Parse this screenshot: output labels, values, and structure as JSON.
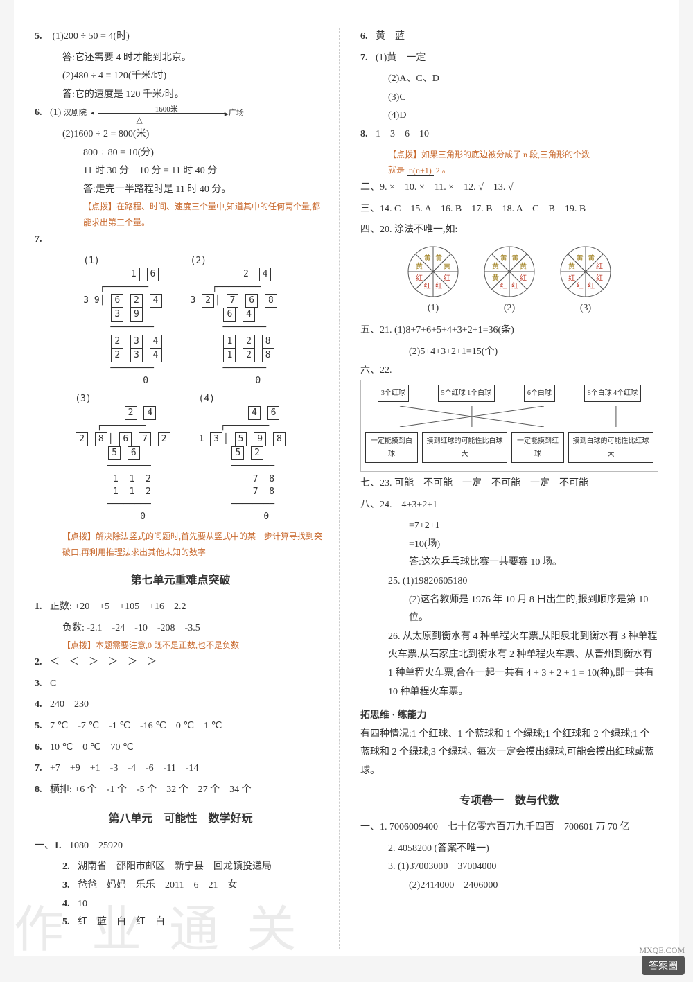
{
  "left": {
    "q5": {
      "n": "5.",
      "a": "(1)200 ÷ 50 = 4(时)",
      "a2": "答:它还需要 4 时才能到北京。",
      "b": "(2)480 ÷ 4 = 120(千米/时)",
      "b2": "答:它的速度是 120 千米/时。"
    },
    "q6": {
      "n": "6.",
      "a_label_l": "汉剧院",
      "a_len": "1600米",
      "a_label_r": "广场",
      "b": "(2)1600 ÷ 2 = 800(米)",
      "c": "800 ÷ 80 = 10(分)",
      "d": "11 时 30 分 + 10 分 = 11 时 40 分",
      "e": "答:走完一半路程时是 11 时 40 分。",
      "note": "【点拨】在路程、时间、速度三个量中,知道其中的任何两个量,都能求出第三个量。"
    },
    "q7": {
      "n": "7.",
      "sub": [
        "(1)",
        "(2)",
        "(3)",
        "(4)"
      ],
      "note": "【点拨】解决除法竖式的问题时,首先要从竖式中的某一步计算寻找到突破口,再利用推理法求出其他未知的数字"
    },
    "sec7_title": "第七单元重难点突破",
    "u7": {
      "q1a": "正数: +20　+5　+105　+16　2.2",
      "q1b": "负数: -2.1　-24　-10　-208　-3.5",
      "q1note": "【点拨】本题需要注意,0 既不是正数,也不是负数",
      "q2": "＜　＜　＞　＞　＞　＞",
      "q3": "C",
      "q4": "240　230",
      "q5": "7 ℃　-7 ℃　-1 ℃　-16 ℃　0 ℃　1 ℃",
      "q6": "10 ℃　0 ℃　70 ℃",
      "q7": "+7　+9　+1　-3　-4　-6　-11　-14",
      "q8": "横排: +6 个　-1 个　-5 个　32 个　27 个　34 个"
    },
    "sec8_title": "第八单元　可能性　数学好玩",
    "u8": {
      "q1": "1080　25920",
      "q2": "湖南省　邵阳市邮区　新宁县　回龙镇投递局",
      "q3": "爸爸　妈妈　乐乐　2011　6　21　女",
      "q4": "10",
      "q5": "红　蓝　白　红　白"
    }
  },
  "right": {
    "q6": "黄　蓝",
    "q7": {
      "a": "(1)黄　一定",
      "b": "(2)A、C、D",
      "c": "(3)C",
      "d": "(4)D"
    },
    "q8": {
      "a": "1　3　6　10",
      "note_pre": "【点拨】如果三角形的底边被分成了 n 段,三角形的个数",
      "note_frac_t": "n(n+1)",
      "note_frac_b": "2",
      "note_pre2": "就是",
      "note_suf": "。"
    },
    "sec2": "二、9. ×　10. ×　11. ×　12. √　13. √",
    "sec3": "三、14. C　15. A　16. B　17. B　18. A　C　B　19. B",
    "sec4_title": "四、20. 涂法不唯一,如:",
    "pies": {
      "labels": [
        "(1)",
        "(2)",
        "(3)"
      ],
      "colors": {
        "y": "#f5e6a8",
        "r": "#f2b0a8",
        "line": "#555"
      },
      "segs": [
        [
          "黄",
          "黄",
          "红",
          "红",
          "红",
          "红",
          "黄",
          "黄"
        ],
        [
          "黄",
          "黄",
          "红",
          "红",
          "红",
          "黄",
          "黄",
          "黄"
        ],
        [
          "黄",
          "红",
          "红",
          "红",
          "红",
          "红",
          "黄",
          "黄"
        ]
      ]
    },
    "sec5a": "五、21. (1)8+7+6+5+4+3+2+1=36(条)",
    "sec5b": "(2)5+4+3+2+1=15(个)",
    "sec6_label": "六、22.",
    "boxes_top": [
      "3个红球",
      "5个红球 1个白球",
      "6个白球",
      "8个白球 4个红球"
    ],
    "boxes_bot": [
      "一定能摸到白球",
      "摸到红球的可能性比白球大",
      "一定能摸到红球",
      "摸到白球的可能性比红球大"
    ],
    "sec7": "七、23. 可能　不可能　一定　不可能　一定　不可能",
    "sec8_24a": "八、24.　4+3+2+1",
    "sec8_24b": "=7+2+1",
    "sec8_24c": "=10(场)",
    "sec8_24d": "答:这次乒乓球比赛一共要赛 10 场。",
    "q25a": "25. (1)19820605180",
    "q25b": "(2)这名教师是 1976 年 10 月 8 日出生的,报到顺序是第 10 位。",
    "q26": "26. 从太原到衡水有 4 种单程火车票,从阳泉北到衡水有 3 种单程火车票,从石家庄北到衡水有 2 种单程火车票、从晋州到衡水有 1 种单程火车票,合在一起一共有 4 + 3 + 2 + 1 = 10(种),即一共有 10 种单程火车票。",
    "ext_title": "拓思维 · 练能力",
    "ext": "有四种情况:1 个红球、1 个蓝球和 1 个绿球;1 个红球和 2 个绿球;1 个蓝球和 2 个绿球;3 个绿球。每次一定会摸出绿球,可能会摸出红球或蓝球。",
    "sp_title": "专项卷一　数与代数",
    "sp1": "一、1. 7006009400　七十亿零六百万九千四百　700601 万 70 亿",
    "sp2": "2. 4058200 (答案不唯一)",
    "sp3a": "3. (1)37003000　37004000",
    "sp3b": "(2)2414000　2406000"
  },
  "watermark": "作业通关",
  "corner": "答案圈",
  "corner_sub": "MXQE.COM"
}
